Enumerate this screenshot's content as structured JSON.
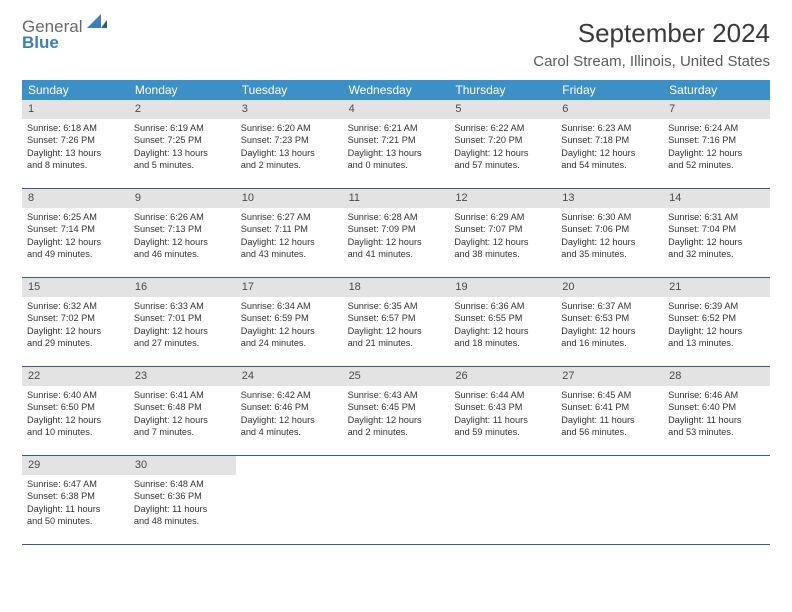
{
  "logo": {
    "line1": "General",
    "line2": "Blue"
  },
  "title": "September 2024",
  "location": "Carol Stream, Illinois, United States",
  "colors": {
    "header_bg": "#3d8fc7",
    "header_text": "#ffffff",
    "daynum_bg": "#e3e3e3",
    "week_border": "#2f5f7f",
    "logo_grey": "#6a6a6a",
    "logo_blue": "#3d7fb8"
  },
  "weekdays": [
    "Sunday",
    "Monday",
    "Tuesday",
    "Wednesday",
    "Thursday",
    "Friday",
    "Saturday"
  ],
  "weeks": [
    [
      {
        "n": "1",
        "sunrise": "Sunrise: 6:18 AM",
        "sunset": "Sunset: 7:26 PM",
        "day1": "Daylight: 13 hours",
        "day2": "and 8 minutes."
      },
      {
        "n": "2",
        "sunrise": "Sunrise: 6:19 AM",
        "sunset": "Sunset: 7:25 PM",
        "day1": "Daylight: 13 hours",
        "day2": "and 5 minutes."
      },
      {
        "n": "3",
        "sunrise": "Sunrise: 6:20 AM",
        "sunset": "Sunset: 7:23 PM",
        "day1": "Daylight: 13 hours",
        "day2": "and 2 minutes."
      },
      {
        "n": "4",
        "sunrise": "Sunrise: 6:21 AM",
        "sunset": "Sunset: 7:21 PM",
        "day1": "Daylight: 13 hours",
        "day2": "and 0 minutes."
      },
      {
        "n": "5",
        "sunrise": "Sunrise: 6:22 AM",
        "sunset": "Sunset: 7:20 PM",
        "day1": "Daylight: 12 hours",
        "day2": "and 57 minutes."
      },
      {
        "n": "6",
        "sunrise": "Sunrise: 6:23 AM",
        "sunset": "Sunset: 7:18 PM",
        "day1": "Daylight: 12 hours",
        "day2": "and 54 minutes."
      },
      {
        "n": "7",
        "sunrise": "Sunrise: 6:24 AM",
        "sunset": "Sunset: 7:16 PM",
        "day1": "Daylight: 12 hours",
        "day2": "and 52 minutes."
      }
    ],
    [
      {
        "n": "8",
        "sunrise": "Sunrise: 6:25 AM",
        "sunset": "Sunset: 7:14 PM",
        "day1": "Daylight: 12 hours",
        "day2": "and 49 minutes."
      },
      {
        "n": "9",
        "sunrise": "Sunrise: 6:26 AM",
        "sunset": "Sunset: 7:13 PM",
        "day1": "Daylight: 12 hours",
        "day2": "and 46 minutes."
      },
      {
        "n": "10",
        "sunrise": "Sunrise: 6:27 AM",
        "sunset": "Sunset: 7:11 PM",
        "day1": "Daylight: 12 hours",
        "day2": "and 43 minutes."
      },
      {
        "n": "11",
        "sunrise": "Sunrise: 6:28 AM",
        "sunset": "Sunset: 7:09 PM",
        "day1": "Daylight: 12 hours",
        "day2": "and 41 minutes."
      },
      {
        "n": "12",
        "sunrise": "Sunrise: 6:29 AM",
        "sunset": "Sunset: 7:07 PM",
        "day1": "Daylight: 12 hours",
        "day2": "and 38 minutes."
      },
      {
        "n": "13",
        "sunrise": "Sunrise: 6:30 AM",
        "sunset": "Sunset: 7:06 PM",
        "day1": "Daylight: 12 hours",
        "day2": "and 35 minutes."
      },
      {
        "n": "14",
        "sunrise": "Sunrise: 6:31 AM",
        "sunset": "Sunset: 7:04 PM",
        "day1": "Daylight: 12 hours",
        "day2": "and 32 minutes."
      }
    ],
    [
      {
        "n": "15",
        "sunrise": "Sunrise: 6:32 AM",
        "sunset": "Sunset: 7:02 PM",
        "day1": "Daylight: 12 hours",
        "day2": "and 29 minutes."
      },
      {
        "n": "16",
        "sunrise": "Sunrise: 6:33 AM",
        "sunset": "Sunset: 7:01 PM",
        "day1": "Daylight: 12 hours",
        "day2": "and 27 minutes."
      },
      {
        "n": "17",
        "sunrise": "Sunrise: 6:34 AM",
        "sunset": "Sunset: 6:59 PM",
        "day1": "Daylight: 12 hours",
        "day2": "and 24 minutes."
      },
      {
        "n": "18",
        "sunrise": "Sunrise: 6:35 AM",
        "sunset": "Sunset: 6:57 PM",
        "day1": "Daylight: 12 hours",
        "day2": "and 21 minutes."
      },
      {
        "n": "19",
        "sunrise": "Sunrise: 6:36 AM",
        "sunset": "Sunset: 6:55 PM",
        "day1": "Daylight: 12 hours",
        "day2": "and 18 minutes."
      },
      {
        "n": "20",
        "sunrise": "Sunrise: 6:37 AM",
        "sunset": "Sunset: 6:53 PM",
        "day1": "Daylight: 12 hours",
        "day2": "and 16 minutes."
      },
      {
        "n": "21",
        "sunrise": "Sunrise: 6:39 AM",
        "sunset": "Sunset: 6:52 PM",
        "day1": "Daylight: 12 hours",
        "day2": "and 13 minutes."
      }
    ],
    [
      {
        "n": "22",
        "sunrise": "Sunrise: 6:40 AM",
        "sunset": "Sunset: 6:50 PM",
        "day1": "Daylight: 12 hours",
        "day2": "and 10 minutes."
      },
      {
        "n": "23",
        "sunrise": "Sunrise: 6:41 AM",
        "sunset": "Sunset: 6:48 PM",
        "day1": "Daylight: 12 hours",
        "day2": "and 7 minutes."
      },
      {
        "n": "24",
        "sunrise": "Sunrise: 6:42 AM",
        "sunset": "Sunset: 6:46 PM",
        "day1": "Daylight: 12 hours",
        "day2": "and 4 minutes."
      },
      {
        "n": "25",
        "sunrise": "Sunrise: 6:43 AM",
        "sunset": "Sunset: 6:45 PM",
        "day1": "Daylight: 12 hours",
        "day2": "and 2 minutes."
      },
      {
        "n": "26",
        "sunrise": "Sunrise: 6:44 AM",
        "sunset": "Sunset: 6:43 PM",
        "day1": "Daylight: 11 hours",
        "day2": "and 59 minutes."
      },
      {
        "n": "27",
        "sunrise": "Sunrise: 6:45 AM",
        "sunset": "Sunset: 6:41 PM",
        "day1": "Daylight: 11 hours",
        "day2": "and 56 minutes."
      },
      {
        "n": "28",
        "sunrise": "Sunrise: 6:46 AM",
        "sunset": "Sunset: 6:40 PM",
        "day1": "Daylight: 11 hours",
        "day2": "and 53 minutes."
      }
    ],
    [
      {
        "n": "29",
        "sunrise": "Sunrise: 6:47 AM",
        "sunset": "Sunset: 6:38 PM",
        "day1": "Daylight: 11 hours",
        "day2": "and 50 minutes."
      },
      {
        "n": "30",
        "sunrise": "Sunrise: 6:48 AM",
        "sunset": "Sunset: 6:36 PM",
        "day1": "Daylight: 11 hours",
        "day2": "and 48 minutes."
      },
      null,
      null,
      null,
      null,
      null
    ]
  ]
}
